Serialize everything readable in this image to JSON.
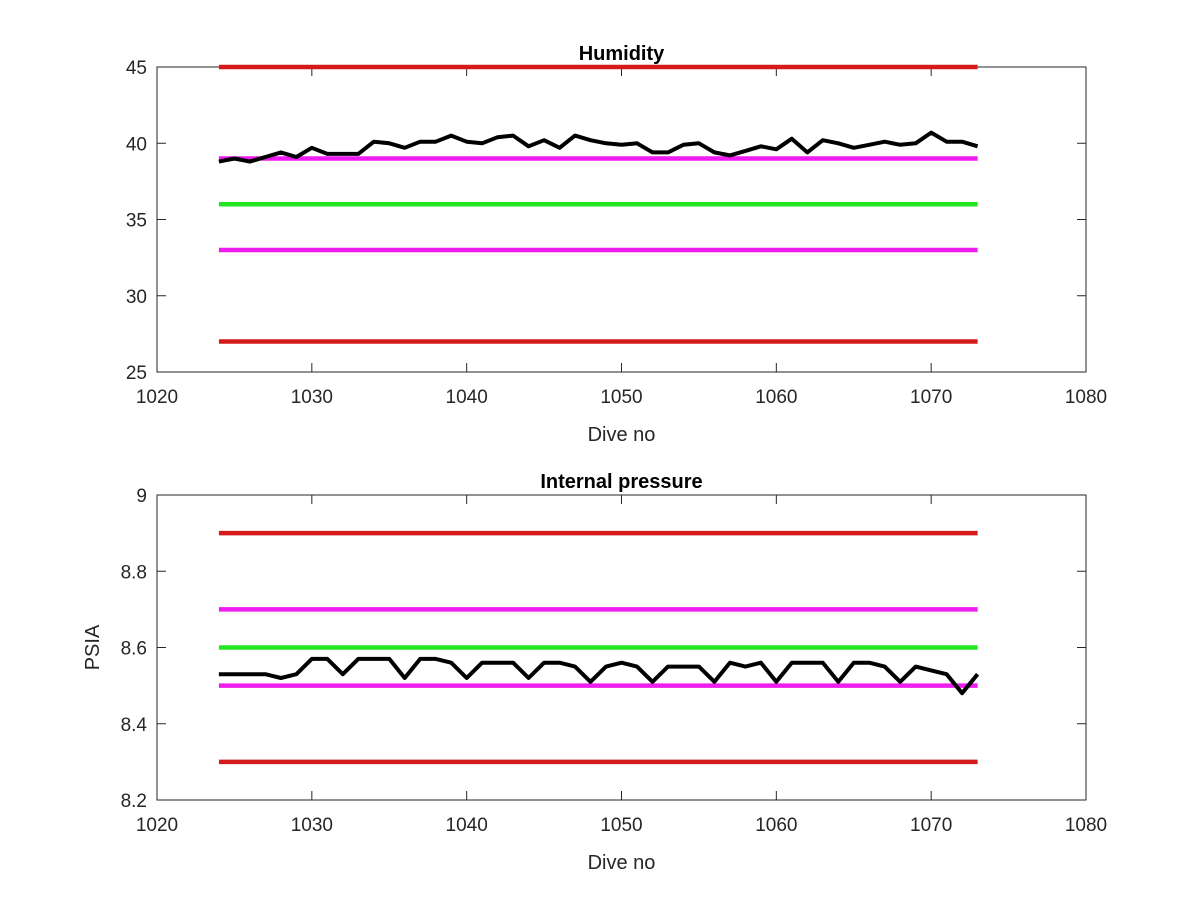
{
  "chart_data": [
    {
      "type": "line",
      "title": "Humidity",
      "xlabel": "Dive no",
      "ylabel": "",
      "xlim": [
        1020,
        1080
      ],
      "ylim": [
        25,
        45
      ],
      "xticks": [
        1020,
        1030,
        1040,
        1050,
        1060,
        1070,
        1080
      ],
      "yticks": [
        25,
        30,
        35,
        40,
        45
      ],
      "grid": false,
      "reference_lines": [
        {
          "y": 45,
          "x_range": [
            1024,
            1073
          ],
          "color": "#d41a1a"
        },
        {
          "y": 39,
          "x_range": [
            1024,
            1073
          ],
          "color": "#ee1cee"
        },
        {
          "y": 36,
          "x_range": [
            1024,
            1073
          ],
          "color": "#22e622"
        },
        {
          "y": 33,
          "x_range": [
            1024,
            1073
          ],
          "color": "#ee1cee"
        },
        {
          "y": 27,
          "x_range": [
            1024,
            1073
          ],
          "color": "#d41a1a"
        }
      ],
      "series": [
        {
          "color": "#000000",
          "x": [
            1024,
            1025,
            1026,
            1027,
            1028,
            1029,
            1030,
            1031,
            1032,
            1033,
            1034,
            1035,
            1036,
            1037,
            1038,
            1039,
            1040,
            1041,
            1042,
            1043,
            1044,
            1045,
            1046,
            1047,
            1048,
            1049,
            1050,
            1051,
            1052,
            1053,
            1054,
            1055,
            1056,
            1057,
            1058,
            1059,
            1060,
            1061,
            1062,
            1063,
            1064,
            1065,
            1066,
            1067,
            1068,
            1069,
            1070,
            1071,
            1072,
            1073
          ],
          "values": [
            38.8,
            39.0,
            38.8,
            39.1,
            39.4,
            39.1,
            39.7,
            39.3,
            39.3,
            39.3,
            40.1,
            40.0,
            39.7,
            40.1,
            40.1,
            40.5,
            40.1,
            40.0,
            40.4,
            40.5,
            39.8,
            40.2,
            39.7,
            40.5,
            40.2,
            40.0,
            39.9,
            40.0,
            39.4,
            39.4,
            39.9,
            40.0,
            39.4,
            39.2,
            39.5,
            39.8,
            39.6,
            40.3,
            39.4,
            40.2,
            40.0,
            39.7,
            39.9,
            40.1,
            39.9,
            40.0,
            40.7,
            40.1,
            40.1,
            39.8
          ]
        }
      ]
    },
    {
      "type": "line",
      "title": "Internal pressure",
      "xlabel": "Dive no",
      "ylabel": "PSIA",
      "xlim": [
        1020,
        1080
      ],
      "ylim": [
        8.2,
        9.0
      ],
      "xticks": [
        1020,
        1030,
        1040,
        1050,
        1060,
        1070,
        1080
      ],
      "yticks": [
        8.2,
        8.4,
        8.6,
        8.8,
        9
      ],
      "grid": false,
      "reference_lines": [
        {
          "y": 8.9,
          "x_range": [
            1024,
            1073
          ],
          "color": "#d41a1a"
        },
        {
          "y": 8.7,
          "x_range": [
            1024,
            1073
          ],
          "color": "#ee1cee"
        },
        {
          "y": 8.6,
          "x_range": [
            1024,
            1073
          ],
          "color": "#22e622"
        },
        {
          "y": 8.5,
          "x_range": [
            1024,
            1073
          ],
          "color": "#ee1cee"
        },
        {
          "y": 8.3,
          "x_range": [
            1024,
            1073
          ],
          "color": "#d41a1a"
        }
      ],
      "series": [
        {
          "color": "#000000",
          "x": [
            1024,
            1025,
            1026,
            1027,
            1028,
            1029,
            1030,
            1031,
            1032,
            1033,
            1034,
            1035,
            1036,
            1037,
            1038,
            1039,
            1040,
            1041,
            1042,
            1043,
            1044,
            1045,
            1046,
            1047,
            1048,
            1049,
            1050,
            1051,
            1052,
            1053,
            1054,
            1055,
            1056,
            1057,
            1058,
            1059,
            1060,
            1061,
            1062,
            1063,
            1064,
            1065,
            1066,
            1067,
            1068,
            1069,
            1070,
            1071,
            1072,
            1073
          ],
          "values": [
            8.53,
            8.53,
            8.53,
            8.53,
            8.52,
            8.53,
            8.57,
            8.57,
            8.53,
            8.57,
            8.57,
            8.57,
            8.52,
            8.57,
            8.57,
            8.56,
            8.52,
            8.56,
            8.56,
            8.56,
            8.52,
            8.56,
            8.56,
            8.55,
            8.51,
            8.55,
            8.56,
            8.55,
            8.51,
            8.55,
            8.55,
            8.55,
            8.51,
            8.56,
            8.55,
            8.56,
            8.51,
            8.56,
            8.56,
            8.56,
            8.51,
            8.56,
            8.56,
            8.55,
            8.51,
            8.55,
            8.54,
            8.53,
            8.48,
            8.53
          ]
        }
      ]
    }
  ]
}
